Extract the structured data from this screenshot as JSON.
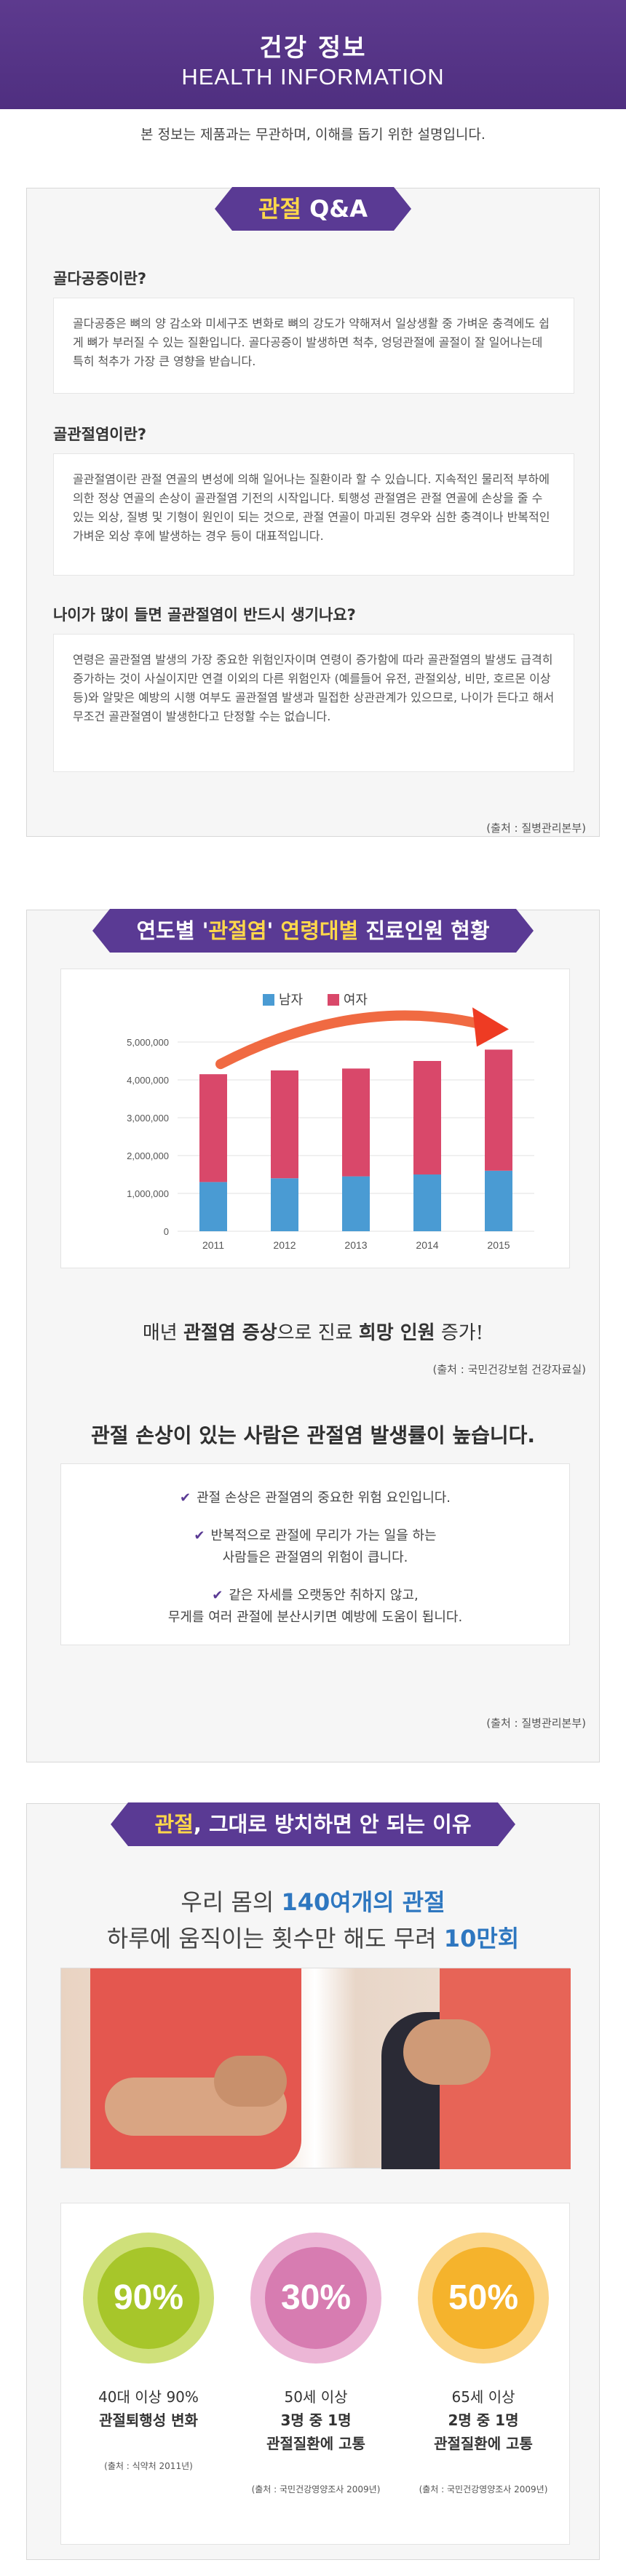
{
  "header": {
    "title_ko": "건강 정보",
    "title_en": "HEALTH INFORMATION"
  },
  "notice": "본 정보는 제품과는 무관하며, 이해를 돕기 위한 설명입니다.",
  "qa": {
    "ribbon_hl": "관절",
    "ribbon_rest": " Q&A",
    "items": [
      {
        "q": "골다공증이란?",
        "a": "골다공증은 뼈의 양 감소와 미세구조 변화로 뼈의 강도가 약해져서 일상생활 중 가벼운 충격에도 쉽게 뼈가 부러질 수 있는 질환입니다. 골다공증이 발생하면 척추, 엉덩관절에 골절이 잘 일어나는데 특히 척추가 가장 큰 영향을 받습니다."
      },
      {
        "q": "골관절염이란?",
        "a": "골관절염이란 관절 연골의 변성에 의해 일어나는 질환이라 할 수 있습니다. 지속적인 물리적 부하에 의한 정상 연골의 손상이 골관절염 기전의 시작입니다. 퇴행성 관절염은 관절 연골에 손상을 줄 수 있는 외상, 질병 및 기형이 원인이 되는 것으로, 관절 연골이 마괴된 경우와 심한 충격이나 반복적인 가벼운 외상 후에 발생하는 경우 등이 대표적입니다."
      },
      {
        "q": "나이가 많이 들면 골관절염이 반드시 생기나요?",
        "a": "연령은 골관절염 발생의 가장 중요한 위험인자이며 연령이 증가함에 따라 골관절염의 발생도 급격히 증가하는 것이 사실이지만 연결 이외의 다른 위험인자 (예를들어 유전, 관절외상, 비만, 호르몬 이상 등)와 알맞은 예방의 시행 여부도 골관절염 발생과 밀접한 상관관계가 있으므로, 나이가 든다고 해서 무조건 골관절염이 발생한다고 단정할 수는 없습니다."
      }
    ],
    "source": "(출처 : 질병관리본부)"
  },
  "stats": {
    "ribbon_p1": "연도별 '",
    "ribbon_hl1": "관절염",
    "ribbon_p2": "' ",
    "ribbon_hl2": "연령대별",
    "ribbon_p3": " 진료인원 현황",
    "caption_p1": "매년 ",
    "caption_b1": "관절염 증상",
    "caption_p2": "으로 진료 ",
    "caption_b2": "희망 인원",
    "caption_p3": " 증가!",
    "source": "(출처 : 국민건강보험 건강자료실)",
    "subhead": "관절 손상이 있는 사람은 관절염 발생률이 높습니다.",
    "checks": [
      {
        "l1": "관절 손상은 관절염의 중요한 위험 요인입니다.",
        "l2": ""
      },
      {
        "l1": "반복적으로 관절에 무리가 가는 일을 하는",
        "l2": "사람들은 관절염의 위험이 큽니다."
      },
      {
        "l1": "같은 자세를 오랫동안 취하지 않고,",
        "l2": "무게를 여러 관절에 분산시키면 예방에 도움이 됩니다."
      }
    ],
    "source2": "(출처 : 질병관리본부)"
  },
  "chart_data": {
    "type": "bar",
    "stacked": true,
    "categories": [
      "2011",
      "2012",
      "2013",
      "2014",
      "2015"
    ],
    "series": [
      {
        "name": "남자",
        "values": [
          1300000,
          1400000,
          1450000,
          1500000,
          1600000
        ],
        "color": "#4a9bd3"
      },
      {
        "name": "여자",
        "values": [
          2850000,
          2850000,
          2850000,
          3000000,
          3200000
        ],
        "color": "#d9486a"
      }
    ],
    "yticks": [
      "0",
      "1,000,000",
      "2,000,000",
      "3,000,000",
      "4,000,000",
      "5,000,000"
    ],
    "ylim": [
      0,
      5000000
    ],
    "legend": "top-center",
    "grid": true
  },
  "reason": {
    "ribbon_hl": "관절",
    "ribbon_rest": ", 그대로 방치하면 안 되는 이유",
    "line1_p1": "우리 몸의 ",
    "line1_b": "140여개의 관절",
    "line2_p1": "하루에 움직이는 횟수만 해도 무려 ",
    "line2_b": "10만회",
    "stats": [
      {
        "pct": "90%",
        "d1": "40대 이상 90%",
        "d2": "관절퇴행성 변화",
        "d3": "",
        "src": "(출처 : 식약처 2011년)",
        "outer": "#cfe07a",
        "inner": "#a7c62a"
      },
      {
        "pct": "30%",
        "d1": "50세 이상",
        "d2": "3명 중 1명",
        "d3": "관절질환에 고통",
        "src": "(출처 : 국민건강영양조사 2009년)",
        "outer": "#ecb6d6",
        "inner": "#d77cb1"
      },
      {
        "pct": "50%",
        "d1": "65세 이상",
        "d2": "2명 중 1명",
        "d3": "관절질환에 고통",
        "src": "(출처 : 국민건강영양조사 2009년)",
        "outer": "#fbd68a",
        "inner": "#f5b32c"
      }
    ]
  }
}
